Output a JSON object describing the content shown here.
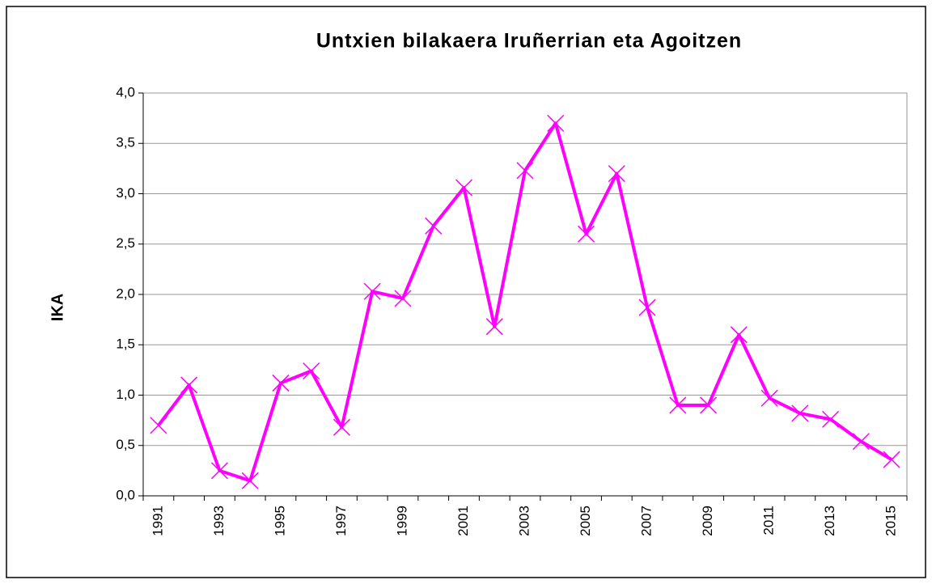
{
  "chart_data": {
    "type": "line",
    "title": "Untxien bilakaera Iruñerrian eta Agoitzen",
    "y_label": "IKA",
    "categories": [
      "1991",
      null,
      "1993",
      null,
      "1995",
      null,
      "1997",
      null,
      "1999",
      null,
      "2001",
      null,
      "2003",
      null,
      "2005",
      null,
      "2007",
      null,
      "2009",
      null,
      "2011",
      null,
      "2013",
      null,
      "2015"
    ],
    "series": [
      {
        "color": "#ff00ff",
        "values": [
          0.7,
          1.1,
          0.25,
          0.15,
          1.12,
          1.24,
          0.68,
          2.03,
          1.96,
          2.68,
          3.06,
          1.68,
          3.23,
          3.7,
          2.6,
          3.2,
          1.87,
          0.9,
          0.9,
          1.6,
          0.97,
          0.82,
          0.76,
          0.54,
          0.36
        ]
      }
    ],
    "ylim": [
      0,
      4
    ],
    "yticks": [
      {
        "value": 0,
        "label": "0,0"
      },
      {
        "value": 0.5,
        "label": "0,5"
      },
      {
        "value": 1,
        "label": "1,0"
      },
      {
        "value": 1.5,
        "label": "1,5"
      },
      {
        "value": 2,
        "label": "2,0"
      },
      {
        "value": 2.5,
        "label": "2,5"
      },
      {
        "value": 3,
        "label": "3,0"
      },
      {
        "value": 3.5,
        "label": "3,5"
      },
      {
        "value": 4,
        "label": "4,0"
      }
    ],
    "grid": true
  }
}
